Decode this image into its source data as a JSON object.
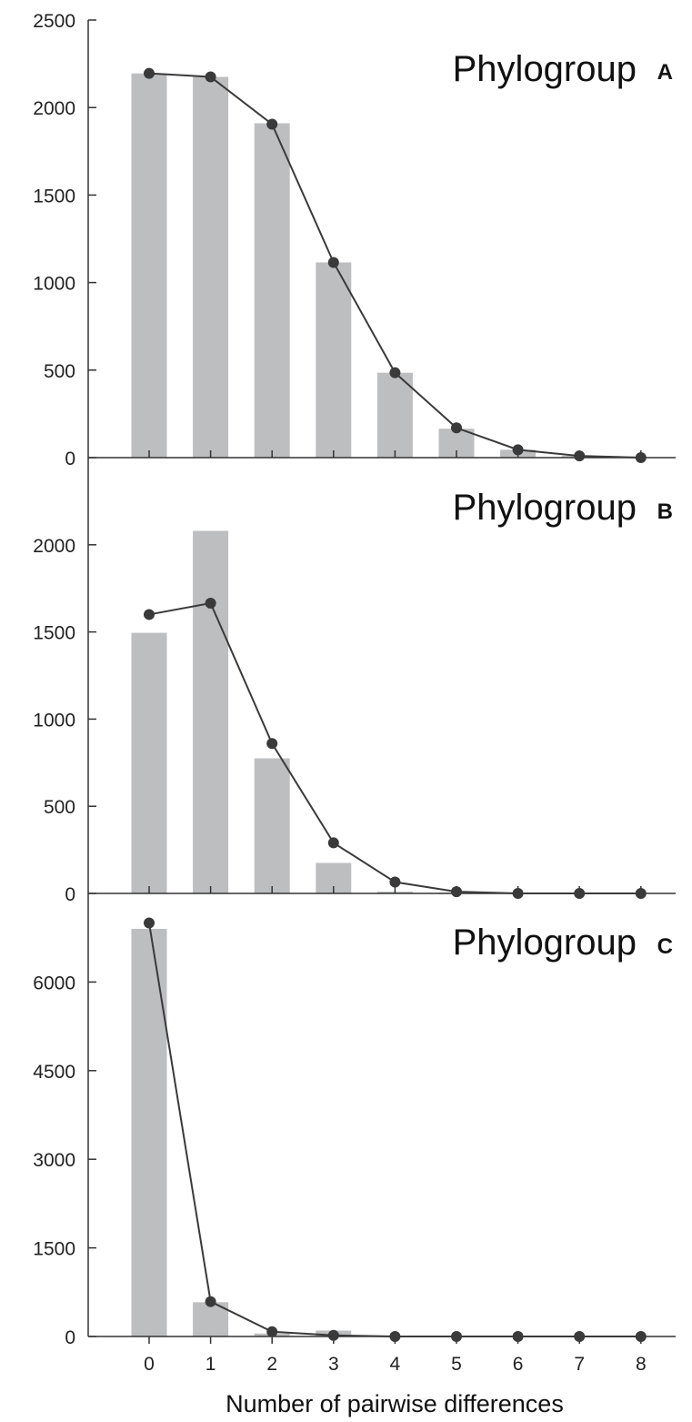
{
  "chart_data": [
    {
      "type": "bar",
      "title": "Phylogroup",
      "panel_letter": "A",
      "categories": [
        "0",
        "1",
        "2",
        "3",
        "4",
        "5",
        "6",
        "7",
        "8"
      ],
      "x": [
        0,
        1,
        2,
        3,
        4,
        5,
        6,
        7,
        8
      ],
      "series": [
        {
          "kind": "bar",
          "values": [
            2195,
            2175,
            1910,
            1115,
            485,
            165,
            45,
            10,
            0
          ]
        },
        {
          "kind": "line",
          "values": [
            2195,
            2175,
            1905,
            1115,
            485,
            170,
            45,
            10,
            0
          ]
        }
      ],
      "ylim": [
        0,
        2500
      ],
      "yticks": [
        0,
        500,
        1000,
        1500,
        2000,
        2500
      ],
      "xlabel": "",
      "ylabel": ""
    },
    {
      "type": "bar",
      "title": "Phylogroup",
      "panel_letter": "B",
      "categories": [
        "0",
        "1",
        "2",
        "3",
        "4",
        "5",
        "6",
        "7",
        "8"
      ],
      "x": [
        0,
        1,
        2,
        3,
        4,
        5,
        6,
        7,
        8
      ],
      "series": [
        {
          "kind": "bar",
          "values": [
            1495,
            2080,
            775,
            175,
            10,
            5,
            5,
            5,
            0
          ]
        },
        {
          "kind": "line",
          "values": [
            1600,
            1665,
            860,
            290,
            65,
            10,
            0,
            0,
            0
          ]
        }
      ],
      "ylim": [
        0,
        2500
      ],
      "yticks": [
        0,
        500,
        1000,
        1500,
        2000
      ],
      "xlabel": "",
      "ylabel": ""
    },
    {
      "type": "bar",
      "title": "Phylogroup",
      "panel_letter": "C",
      "categories": [
        "0",
        "1",
        "2",
        "3",
        "4",
        "5",
        "6",
        "7",
        "8"
      ],
      "x": [
        0,
        1,
        2,
        3,
        4,
        5,
        6,
        7,
        8
      ],
      "series": [
        {
          "kind": "bar",
          "values": [
            6900,
            580,
            50,
            100,
            10,
            5,
            5,
            0,
            0
          ]
        },
        {
          "kind": "line",
          "values": [
            7000,
            590,
            80,
            20,
            0,
            0,
            0,
            0,
            0
          ]
        }
      ],
      "ylim": [
        0,
        7500
      ],
      "yticks": [
        0,
        1500,
        3000,
        4500,
        6000
      ],
      "xlabel": "Number of pairwise differences",
      "ylabel": ""
    }
  ],
  "colors": {
    "bar": "#bdbec0",
    "line": "#3a3a3a",
    "marker": "#3a3a3a",
    "axis": "#333333"
  }
}
